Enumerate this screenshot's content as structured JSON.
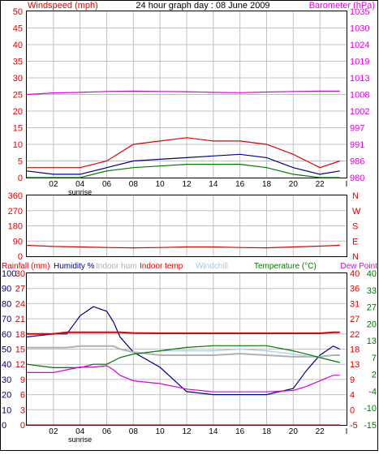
{
  "header": {
    "title": "24 hour graph day : 08 June 2009",
    "left_label": "Windspeed (mph)",
    "right_label": "Barometer (hPa)"
  },
  "colors": {
    "background": "#ffffff",
    "frame": "#000000",
    "grid": "#c0c0c0",
    "red": "#dd0000",
    "navy": "#000080",
    "magenta": "#dd00dd",
    "green": "#007700",
    "gray": "#b0b0b0",
    "lightblue": "#a8c8e8"
  },
  "x_axis": {
    "ticks": [
      "02",
      "04",
      "06",
      "08",
      "10",
      "12",
      "14",
      "16",
      "18",
      "20",
      "22",
      "I"
    ],
    "sunrise_label": "sunrise"
  },
  "panel1": {
    "left_ticks": [
      "50",
      "45",
      "40",
      "35",
      "30",
      "25",
      "20",
      "15",
      "10",
      "5",
      "0"
    ],
    "right_ticks": [
      "1035",
      "1030",
      "1024",
      "1019",
      "1013",
      "1008",
      "1002",
      "997",
      "991",
      "986",
      "980"
    ]
  },
  "panel2": {
    "left_ticks": [
      "360",
      "270",
      "180",
      "90",
      "0"
    ],
    "right_ticks": [
      "N",
      "W",
      "S",
      "E",
      "N"
    ]
  },
  "panel3": {
    "legend": {
      "rainfall": "Rainfall (mm)",
      "humidity": "Humidity %",
      "indoor_hum": "Indoor hum",
      "indoor_temp": "Indoor temp",
      "windchill": "Windchill",
      "temperature": "Temperature (°C)",
      "dew_point": "Dew Point"
    },
    "rain_ticks": [
      "30",
      "27",
      "24",
      "21",
      "18",
      "15",
      "12",
      "9",
      "6",
      "3",
      "0"
    ],
    "hum_ticks": [
      "100",
      "90",
      "80",
      "70",
      "60",
      "50",
      "40",
      "30",
      "20",
      "10",
      "0"
    ],
    "temp_ticks": [
      "40",
      "36",
      "31",
      "27",
      "22",
      "18",
      "13",
      "9",
      "4",
      "0",
      "-5"
    ],
    "dew_ticks": [
      "40",
      "33",
      "27",
      "20",
      "13",
      "7",
      "2",
      "-4",
      "-10",
      "-15"
    ]
  },
  "chart_data": [
    {
      "type": "line",
      "title": "24 hour graph day : 08 June 2009",
      "xlabel": "",
      "x_ticks": [
        "02",
        "04",
        "06",
        "08",
        "10",
        "12",
        "14",
        "16",
        "18",
        "20",
        "22"
      ],
      "ylabel": "Windspeed (mph)",
      "ylim": [
        0,
        50
      ],
      "y2label": "Barometer (hPa)",
      "y2lim": [
        980,
        1035
      ],
      "x": [
        0,
        2,
        4,
        6,
        8,
        10,
        12,
        14,
        16,
        18,
        20,
        22,
        23.5
      ],
      "series": [
        {
          "name": "",
          "color": "#dd0000",
          "axis": "left",
          "values": [
            3,
            3,
            3,
            5,
            10,
            11,
            12,
            11,
            11,
            10,
            7,
            3,
            5
          ]
        },
        {
          "name": "",
          "color": "#000080",
          "axis": "left",
          "values": [
            2,
            1,
            1,
            3,
            5,
            5.5,
            6,
            6.5,
            7,
            6,
            3,
            1,
            2
          ]
        },
        {
          "name": "",
          "color": "#007700",
          "axis": "left",
          "values": [
            0,
            0,
            0,
            2,
            3,
            3.5,
            4,
            4,
            4,
            3,
            1,
            0,
            0
          ]
        },
        {
          "name": "",
          "color": "#dd00dd",
          "axis": "right",
          "values": [
            1007.5,
            1008,
            1008.2,
            1008.5,
            1008.6,
            1008.5,
            1008.4,
            1008.2,
            1008.1,
            1008.3,
            1008.5,
            1008.6,
            1008.6
          ]
        }
      ],
      "grid": true
    },
    {
      "type": "line",
      "xlabel": "",
      "ylabel": "",
      "ylim": [
        0,
        360
      ],
      "y_ticks": [
        "360",
        "270",
        "180",
        "90",
        "0"
      ],
      "y2_ticks": [
        "N",
        "W",
        "S",
        "E",
        "N"
      ],
      "x": [
        0,
        2,
        4,
        6,
        8,
        10,
        12,
        14,
        16,
        18,
        20,
        22,
        23.5
      ],
      "series": [
        {
          "name": "",
          "color": "#dd0000",
          "values": [
            65,
            58,
            55,
            52,
            50,
            52,
            55,
            55,
            52,
            50,
            55,
            60,
            65
          ]
        }
      ],
      "grid": true
    },
    {
      "type": "line",
      "xlabel": "",
      "ylabel": "Rainfall (mm)",
      "legend": [
        "Rainfall (mm)",
        "Humidity %",
        "Indoor hum",
        "Indoor temp",
        "Windchill",
        "Temperature (°C)",
        "Dew Point"
      ],
      "legend_placement": "top",
      "axes": {
        "rainfall_mm": [
          0,
          30
        ],
        "humidity_pct": [
          0,
          100
        ],
        "temperature_c": [
          -5,
          40
        ],
        "dew_point_c": [
          -15,
          40
        ]
      },
      "x": [
        0,
        2,
        3,
        4,
        5,
        6,
        6.5,
        7,
        8,
        10,
        12,
        14,
        16,
        18,
        20,
        21,
        22,
        23,
        23.5
      ],
      "series": [
        {
          "name": "Rainfall (mm)",
          "color": "#dd0000",
          "axis": "rainfall_mm",
          "values": [
            0,
            0,
            0,
            0,
            0,
            0,
            0,
            0,
            0,
            0,
            0,
            0,
            0,
            0,
            0,
            0,
            0,
            0,
            0
          ]
        },
        {
          "name": "Humidity %",
          "color": "#000080",
          "axis": "humidity_pct",
          "values": [
            58,
            60,
            60,
            72,
            78,
            75,
            68,
            58,
            48,
            38,
            22,
            20,
            20,
            20,
            24,
            36,
            46,
            52,
            50
          ]
        },
        {
          "name": "Indoor hum",
          "color": "#b0b0b0",
          "axis": "humidity_pct",
          "values": [
            51,
            51,
            51,
            52,
            52,
            52,
            52,
            50,
            48,
            46,
            46,
            46,
            47,
            46,
            45,
            45,
            45,
            46,
            46
          ]
        },
        {
          "name": "Indoor temp",
          "color": "#dd0000",
          "axis": "temperature_c",
          "values": [
            22,
            22,
            22.5,
            22.5,
            22.5,
            22.5,
            22.5,
            22.5,
            22.3,
            22.2,
            22.2,
            22.2,
            22.2,
            22.2,
            22.2,
            22.2,
            22.2,
            22.5,
            22.5
          ]
        },
        {
          "name": "Windchill",
          "color": "#a8c8e8",
          "axis": "temperature_c",
          "values": [
            13,
            12,
            12,
            12,
            13,
            13,
            14,
            15,
            16,
            17,
            17,
            17,
            17.5,
            17,
            16,
            15.5,
            15,
            14,
            13.5
          ]
        },
        {
          "name": "Temperature (°C)",
          "color": "#007700",
          "axis": "temperature_c",
          "values": [
            13,
            12,
            12,
            12,
            13,
            13,
            14,
            15,
            16,
            17,
            18,
            18.5,
            18.5,
            18.5,
            17,
            16,
            15,
            14,
            13.5
          ]
        },
        {
          "name": "Dew Point",
          "color": "#dd00dd",
          "axis": "dew_point_c",
          "values": [
            4,
            4,
            5,
            6,
            6,
            6.5,
            5,
            3,
            1,
            0,
            -2,
            -3,
            -3,
            -3,
            -2.5,
            -1,
            1,
            3,
            3
          ]
        }
      ],
      "grid": true
    }
  ]
}
